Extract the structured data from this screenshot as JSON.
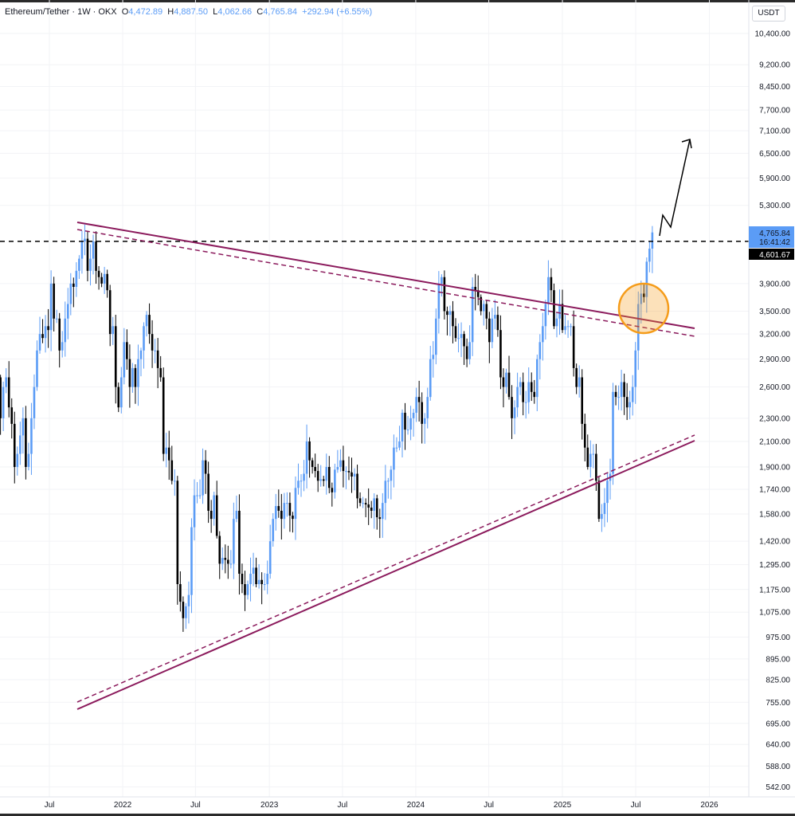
{
  "legend": {
    "symbol": "Ethereum/Tether · 1W · OKX",
    "open_label": "O",
    "open": "4,472.89",
    "high_label": "H",
    "high": "4,887.50",
    "low_label": "L",
    "low": "4,062.66",
    "close_label": "C",
    "close": "4,765.84",
    "change": "+292.94 (+6.55%)"
  },
  "price_axis": {
    "unit": "USDT",
    "current_price": "4,765.84",
    "countdown": "16:41:42",
    "line_price_label": "4,601.67"
  },
  "colors": {
    "up": "#5b9cf6",
    "down": "#000000",
    "trendline": "#8b1a5c",
    "highlight": "#f59c1a"
  },
  "chart_data": {
    "type": "candlestick",
    "title": "Ethereum/Tether · 1W · OKX",
    "scale": "log",
    "ylim": [
      530,
      10800
    ],
    "y_ticks": [
      10400,
      9200,
      8450,
      7700,
      7100,
      6500,
      5900,
      5300,
      3900,
      3500,
      3200,
      2900,
      2600,
      2300,
      2100,
      1900,
      1740,
      1580,
      1420,
      1295,
      1175,
      1075,
      975,
      895,
      825,
      755,
      695,
      640,
      588,
      542
    ],
    "y_tick_labels": [
      "10,400.00",
      "9,200.00",
      "8,450.00",
      "7,700.00",
      "7,100.00",
      "6,500.00",
      "5,900.00",
      "5,300.00",
      "3,900.00",
      "3,500.00",
      "3,200.00",
      "2,900.00",
      "2,600.00",
      "2,300.00",
      "2,100.00",
      "1,900.00",
      "1,740.00",
      "1,580.00",
      "1,420.00",
      "1,295.00",
      "1,175.00",
      "1,075.00",
      "975.00",
      "895.00",
      "825.00",
      "755.00",
      "695.00",
      "640.00",
      "588.00",
      "542.00"
    ],
    "x_ticks": [
      "Jul",
      "2022",
      "Jul",
      "2023",
      "Jul",
      "2024",
      "Jul",
      "2025",
      "Jul",
      "2026"
    ],
    "x_tick_weeks_from_jul2021": [
      0,
      26.1,
      52,
      78.3,
      104.3,
      130.4,
      156.4,
      182.6,
      208.7,
      234.9
    ],
    "last_candle_weeks_from_jul2021": 214.6,
    "horizontal_line_price": 4601.67,
    "weekly_closes": [
      1800,
      1700,
      1800,
      1950,
      2100,
      2150,
      2450,
      2300,
      2750,
      3400,
      3900,
      2400,
      2700,
      2300,
      2600,
      2700,
      2400,
      2250,
      1900,
      2000,
      2150,
      2300,
      1900,
      2000,
      2300,
      2600,
      3000,
      3200,
      3150,
      3300,
      3250,
      3900,
      3400,
      3400,
      3000,
      3100,
      3400,
      3600,
      3900,
      3850,
      4100,
      4300,
      4600,
      4650,
      4100,
      4300,
      4600,
      4100,
      4000,
      3900,
      4050,
      3800,
      3200,
      3300,
      2600,
      2400,
      2700,
      3100,
      2900,
      2600,
      2800,
      2600,
      2900,
      3000,
      3300,
      3450,
      3200,
      3000,
      3000,
      2800,
      2700,
      2000,
      2050,
      1950,
      1800,
      1800,
      1200,
      1120,
      1050,
      1100,
      1150,
      1500,
      1700,
      1700,
      1700,
      1950,
      1850,
      1600,
      1550,
      1700,
      1450,
      1300,
      1330,
      1320,
      1300,
      1300,
      1550,
      1600,
      1250,
      1200,
      1150,
      1200,
      1250,
      1280,
      1200,
      1220,
      1200,
      1200,
      1250,
      1420,
      1550,
      1630,
      1600,
      1550,
      1650,
      1650,
      1570,
      1550,
      1750,
      1800,
      1800,
      1850,
      2100,
      1950,
      1900,
      1870,
      1800,
      1810,
      1800,
      1900,
      1750,
      1720,
      1880,
      1900,
      1950,
      1870,
      1870,
      1860,
      1830,
      1850,
      1680,
      1650,
      1650,
      1640,
      1620,
      1600,
      1680,
      1560,
      1550,
      1650,
      1800,
      1800,
      1880,
      2050,
      2050,
      2100,
      2350,
      2200,
      2200,
      2300,
      2350,
      2500,
      2450,
      2250,
      2300,
      2500,
      2900,
      2950,
      3400,
      3900,
      4000,
      3500,
      3450,
      3500,
      3300,
      3150,
      3150,
      3200,
      3050,
      2900,
      3100,
      3850,
      3800,
      3700,
      3500,
      3600,
      3400,
      3100,
      3400,
      3450,
      3250,
      2700,
      2600,
      2750,
      2500,
      2300,
      2400,
      2600,
      2650,
      2450,
      2450,
      2650,
      2550,
      2500,
      2900,
      3100,
      3300,
      3600,
      4000,
      3800,
      3300,
      3400,
      3600,
      3250,
      3300,
      3300,
      3300,
      2800,
      2600,
      2700,
      2250,
      2050,
      1900,
      2000,
      2000,
      1800,
      1550,
      1580,
      1650,
      1800,
      1850,
      2550,
      2500,
      2500,
      2650,
      2500,
      2400,
      2450,
      2600,
      3000,
      3600,
      3750,
      3700,
      4250,
      4472.89,
      4765.84
    ],
    "last_candle": {
      "open": 4472.89,
      "high": 4887.5,
      "low": 4062.66,
      "close": 4765.84
    }
  }
}
